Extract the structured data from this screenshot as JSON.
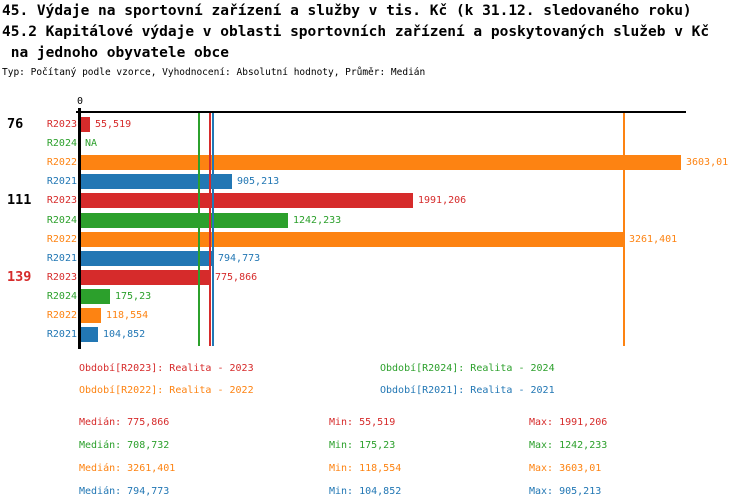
{
  "title": {
    "line1": "45. Výdaje na sportovní zařízení a služby v tis. Kč (k 31.12. sledovaného roku)",
    "line2": "45.2 Kapitálové výdaje v oblasti sportovních zařízení a poskytovaných služeb v Kč",
    "line3": " na jednoho obyvatele obce",
    "subtitle": "Typ: Počítaný podle vzorce, Vyhodnocení: Absolutní hodnoty, Průměr: Medián"
  },
  "colors": {
    "background": "#ffffff",
    "axis": "#000000",
    "series": {
      "R2023": "#d62b2b",
      "R2024": "#2ca02c",
      "R2022": "#fd8312",
      "R2021": "#2277b4"
    },
    "group_label_default": "#000000",
    "group_label_highlight": "#d62b2b"
  },
  "chart_data": {
    "type": "bar",
    "orientation": "horizontal",
    "x_axis": {
      "zero_label": "0",
      "xmin": 0,
      "xmax": 3603.01,
      "grid": false
    },
    "series_order": [
      "R2023",
      "R2024",
      "R2022",
      "R2021"
    ],
    "groups": [
      {
        "label": "76",
        "label_color_key": "group_label_default",
        "rows": [
          {
            "series": "R2023",
            "value": 55.519,
            "display": "55,519"
          },
          {
            "series": "R2024",
            "value": null,
            "display": "NA"
          },
          {
            "series": "R2022",
            "value": 3603.01,
            "display": "3603,01"
          },
          {
            "series": "R2021",
            "value": 905.213,
            "display": "905,213"
          }
        ]
      },
      {
        "label": "111",
        "label_color_key": "group_label_default",
        "rows": [
          {
            "series": "R2023",
            "value": 1991.206,
            "display": "1991,206"
          },
          {
            "series": "R2024",
            "value": 1242.233,
            "display": "1242,233"
          },
          {
            "series": "R2022",
            "value": 3261.401,
            "display": "3261,401"
          },
          {
            "series": "R2021",
            "value": 794.773,
            "display": "794,773"
          }
        ]
      },
      {
        "label": "139",
        "label_color_key": "group_label_highlight",
        "rows": [
          {
            "series": "R2023",
            "value": 775.866,
            "display": "775,866"
          },
          {
            "series": "R2024",
            "value": 175.23,
            "display": "175,23"
          },
          {
            "series": "R2022",
            "value": 118.554,
            "display": "118,554"
          },
          {
            "series": "R2021",
            "value": 104.852,
            "display": "104,852"
          }
        ]
      }
    ],
    "median_lines": [
      {
        "series": "R2024",
        "value": 708.732
      },
      {
        "series": "R2023",
        "value": 775.866
      },
      {
        "series": "R2021",
        "value": 794.773
      },
      {
        "series": "R2022",
        "value": 3261.401
      }
    ]
  },
  "legend": [
    {
      "series": "R2023",
      "text": "Období[R2023]: Realita - 2023"
    },
    {
      "series": "R2024",
      "text": "Období[R2024]: Realita - 2024"
    },
    {
      "series": "R2022",
      "text": "Období[R2022]: Realita - 2022"
    },
    {
      "series": "R2021",
      "text": "Období[R2021]: Realita - 2021"
    }
  ],
  "stats": {
    "labels": {
      "median": "Medián:",
      "min": "Min:",
      "max": "Max:"
    },
    "rows": [
      {
        "series": "R2023",
        "median": "775,866",
        "min": "55,519",
        "max": "1991,206"
      },
      {
        "series": "R2024",
        "median": "708,732",
        "min": "175,23",
        "max": "1242,233"
      },
      {
        "series": "R2022",
        "median": "3261,401",
        "min": "118,554",
        "max": "3603,01"
      },
      {
        "series": "R2021",
        "median": "794,773",
        "min": "104,852",
        "max": "905,213"
      }
    ]
  }
}
